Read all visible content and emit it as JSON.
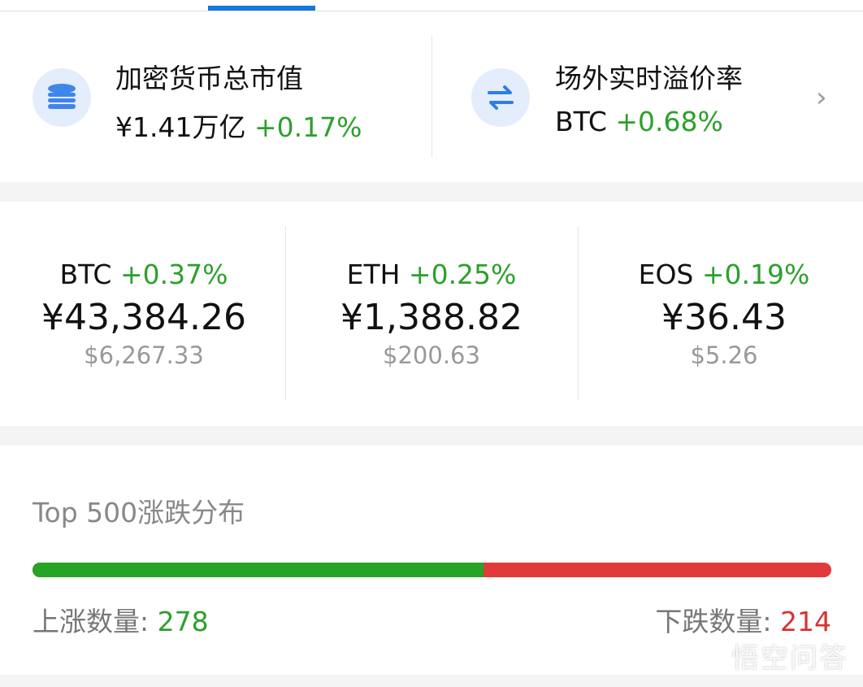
{
  "market_cap": {
    "title": "加密货币总市值",
    "value": "¥1.41万亿",
    "change": "+0.17%",
    "icon": "database-icon"
  },
  "premium": {
    "title": "场外实时溢价率",
    "coin": "BTC",
    "change": "+0.68%",
    "icon": "swap-icon"
  },
  "coins": [
    {
      "symbol": "BTC",
      "change": "+0.37%",
      "cny": "¥43,384.26",
      "usd": "$6,267.33"
    },
    {
      "symbol": "ETH",
      "change": "+0.25%",
      "cny": "¥1,388.82",
      "usd": "$200.63"
    },
    {
      "symbol": "EOS",
      "change": "+0.19%",
      "cny": "¥36.43",
      "usd": "$5.26"
    }
  ],
  "distribution": {
    "title": "Top 500涨跌分布",
    "up_label": "上涨数量: ",
    "up": 278,
    "down_label": "下跌数量: ",
    "down": 214
  },
  "watermark": "悟空问答",
  "colors": {
    "up": "#27a327",
    "down": "#e03a3a",
    "accent": "#1677e0"
  }
}
